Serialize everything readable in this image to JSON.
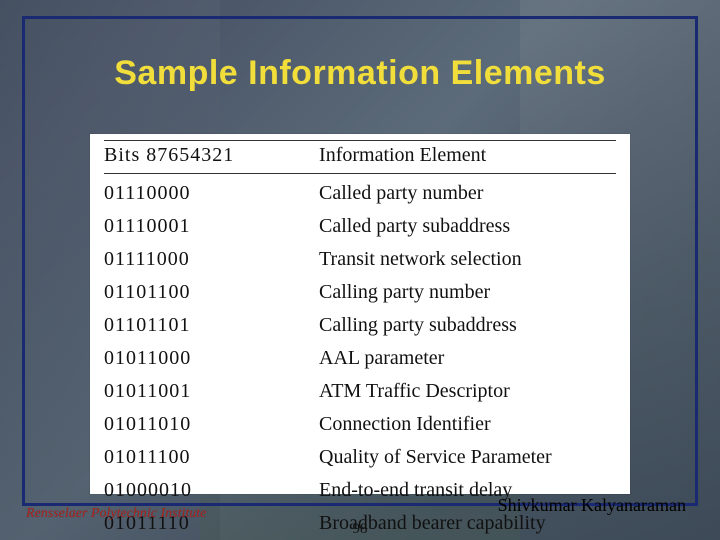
{
  "title": "Sample Information Elements",
  "table": {
    "headers": {
      "bits": "Bits 87654321",
      "ie": "Information Element"
    },
    "rows": [
      {
        "bits": "01110000",
        "ie": "Called party number"
      },
      {
        "bits": "01110001",
        "ie": "Called party subaddress"
      },
      {
        "bits": "01111000",
        "ie": "Transit network selection"
      },
      {
        "bits": "01101100",
        "ie": "Calling party number"
      },
      {
        "bits": "01101101",
        "ie": "Calling party subaddress"
      },
      {
        "bits": "01011000",
        "ie": "AAL parameter"
      },
      {
        "bits": "01011001",
        "ie": "ATM Traffic Descriptor"
      },
      {
        "bits": "01011010",
        "ie": "Connection Identifier"
      },
      {
        "bits": "01011100",
        "ie": "Quality of Service Parameter"
      },
      {
        "bits": "01000010",
        "ie": "End-to-end transit delay"
      },
      {
        "bits": "01011110",
        "ie": "Broadband bearer capability"
      }
    ]
  },
  "footer": {
    "left": "Rensselaer Polytechnic Institute",
    "right": "Shivkumar Kalyanaraman",
    "page": "98"
  },
  "colors": {
    "title": "#f2de3a",
    "frame_border": "#1a2a72",
    "table_bg": "#ffffff",
    "footer_left": "#a8241e"
  }
}
